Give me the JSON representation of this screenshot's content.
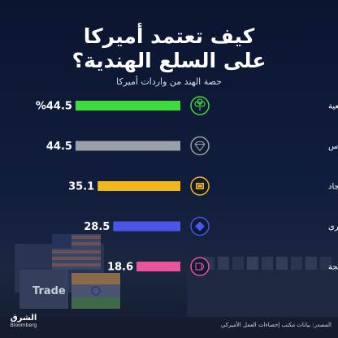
{
  "header": {
    "title_line1": "كيف تعتمد أميركا",
    "title_line2": "على السلع الهندية؟",
    "subtitle": "حصة الهند من واردات أميركا"
  },
  "chart_data": {
    "type": "bar",
    "orientation": "horizontal",
    "categories": [
      "القطن والألياف الطبيعية",
      "الألماس",
      "السجاد",
      "الأحجار الكريمة الأخرى",
      "الأقمشة القطنية والأنسجة"
    ],
    "values": [
      44.5,
      44.5,
      35.1,
      28.5,
      18.6
    ],
    "value_labels": [
      "%44.5",
      "44.5",
      "35.1",
      "28.5",
      "18.6"
    ],
    "xlim": [
      0,
      100
    ],
    "bar_colors": [
      "#3ddc3a",
      "#9aa0a8",
      "#f2b818",
      "#4b55e8",
      "#e8559a"
    ],
    "icons": [
      "cotton-plant-icon",
      "diamond-icon",
      "carpet-icon",
      "gemstone-icon",
      "fabric-icon"
    ],
    "grid": false,
    "legend": "none"
  },
  "scene": {
    "container_text": "Trade"
  },
  "footer": {
    "logo_arabic": "الشرق",
    "logo_sub": "Bloomberg",
    "source": "المصدر: بيانات مكتب إحصاءات العمل الأميركي"
  }
}
